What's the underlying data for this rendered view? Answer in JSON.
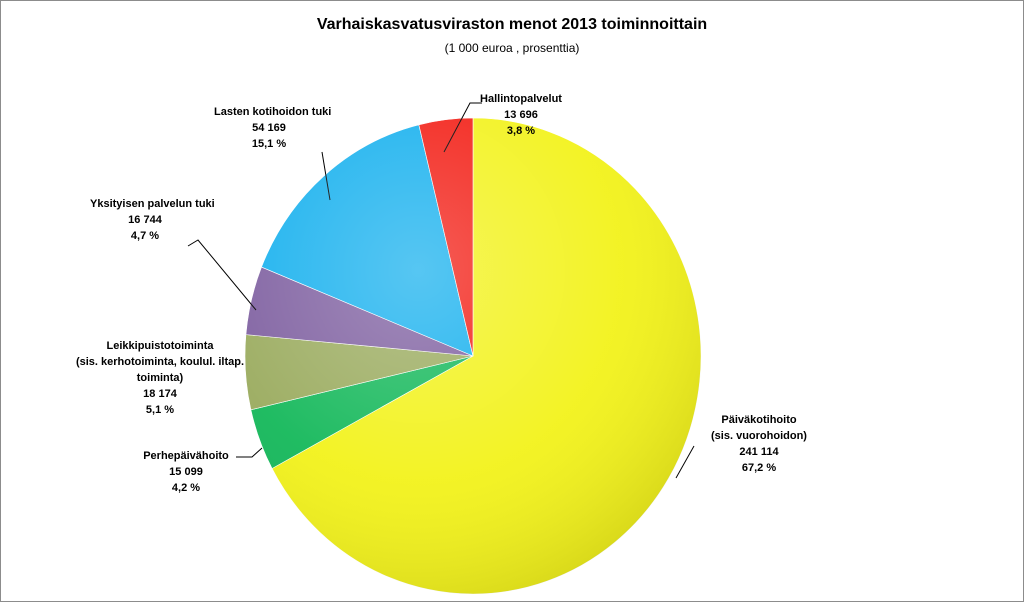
{
  "chart_data": {
    "type": "pie",
    "title": "Varhaiskasvatusviraston menot 2013 toiminnoittain",
    "subtitle": "(1 000 euroa , prosenttia)",
    "slices": [
      {
        "id": "paivakotihoito",
        "lines": [
          "Päiväkotihoito",
          "(sis. vuorohoidon)"
        ],
        "value": 241114,
        "value_label": "241 114",
        "percent_label": "67,2 %",
        "color": "#f2f21a"
      },
      {
        "id": "perhepaivahoito",
        "lines": [
          "Perhepäivähoito"
        ],
        "value": 15099,
        "value_label": "15 099",
        "percent_label": "4,2 %",
        "color": "#14b85a"
      },
      {
        "id": "leikkipuisto",
        "lines": [
          "Leikkipuistotoiminta",
          "(sis. kerhotoiminta, koulul. iltap.",
          "toiminta)"
        ],
        "value": 18174,
        "value_label": "18 174",
        "percent_label": "5,1 %",
        "color": "#9aab5e"
      },
      {
        "id": "yksityisen",
        "lines": [
          "Yksityisen palvelun tuki"
        ],
        "value": 16744,
        "value_label": "16 744",
        "percent_label": "4,7 %",
        "color": "#7e5fa0"
      },
      {
        "id": "lasten-kotihoidon",
        "lines": [
          "Lasten kotihoidon  tuki"
        ],
        "value": 54169,
        "value_label": "54 169",
        "percent_label": "15,1 %",
        "color": "#15b0ee"
      },
      {
        "id": "hallinto",
        "lines": [
          "Hallintopalvelut"
        ],
        "value": 13696,
        "value_label": "13 696",
        "percent_label": "3,8 %",
        "color": "#f21d14"
      }
    ]
  }
}
